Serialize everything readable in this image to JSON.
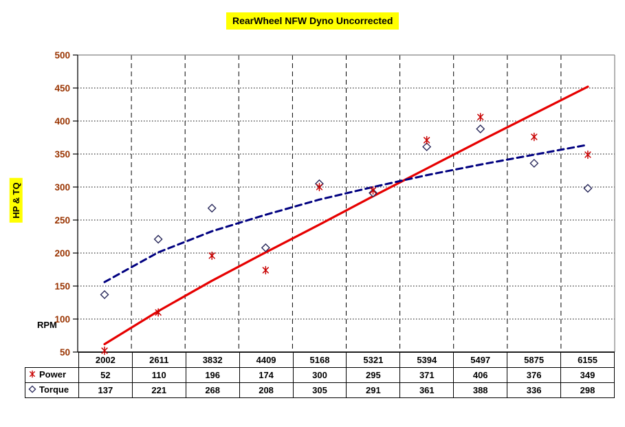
{
  "colors": {
    "title_bg": "#ffff00",
    "axis_title_bg": "#ffff00",
    "ytick_text": "#993300",
    "grid": "#000000",
    "frame": "#808080",
    "axis": "#000000",
    "power_line": "#e60000",
    "power_marker": "#c80000",
    "torque_line": "#000080",
    "torque_marker": "#28285a",
    "table_border": "#000000"
  },
  "chart_data": {
    "type": "scatter",
    "title": "RearWheel NFW Dyno Uncorrected",
    "xlabel": "RPM",
    "ylabel": "HP & TQ",
    "ylim": [
      50,
      500
    ],
    "ytick_interval": 50,
    "yticks": [
      50,
      100,
      150,
      200,
      250,
      300,
      350,
      400,
      450,
      500
    ],
    "grid": true,
    "legend_position": "table-left",
    "categories": [
      "2002",
      "2611",
      "3832",
      "4409",
      "5168",
      "5321",
      "5394",
      "5497",
      "5875",
      "6155"
    ],
    "series": [
      {
        "name": "Power",
        "marker": "asterisk",
        "values": [
          52,
          110,
          196,
          174,
          300,
          295,
          371,
          406,
          376,
          349
        ]
      },
      {
        "name": "Torque",
        "marker": "diamond",
        "values": [
          137,
          221,
          268,
          208,
          305,
          291,
          361,
          388,
          336,
          298
        ]
      }
    ],
    "trendlines": [
      {
        "series": "Power",
        "style": "solid",
        "type": "linear",
        "values_at_categories": [
          62,
          112,
          158,
          201,
          243,
          286,
          328,
          370,
          411,
          452
        ]
      },
      {
        "series": "Torque",
        "style": "dashed",
        "type": "power",
        "values_at_categories": [
          156,
          201,
          233,
          258,
          281,
          300,
          318,
          334,
          349,
          364
        ]
      }
    ]
  }
}
